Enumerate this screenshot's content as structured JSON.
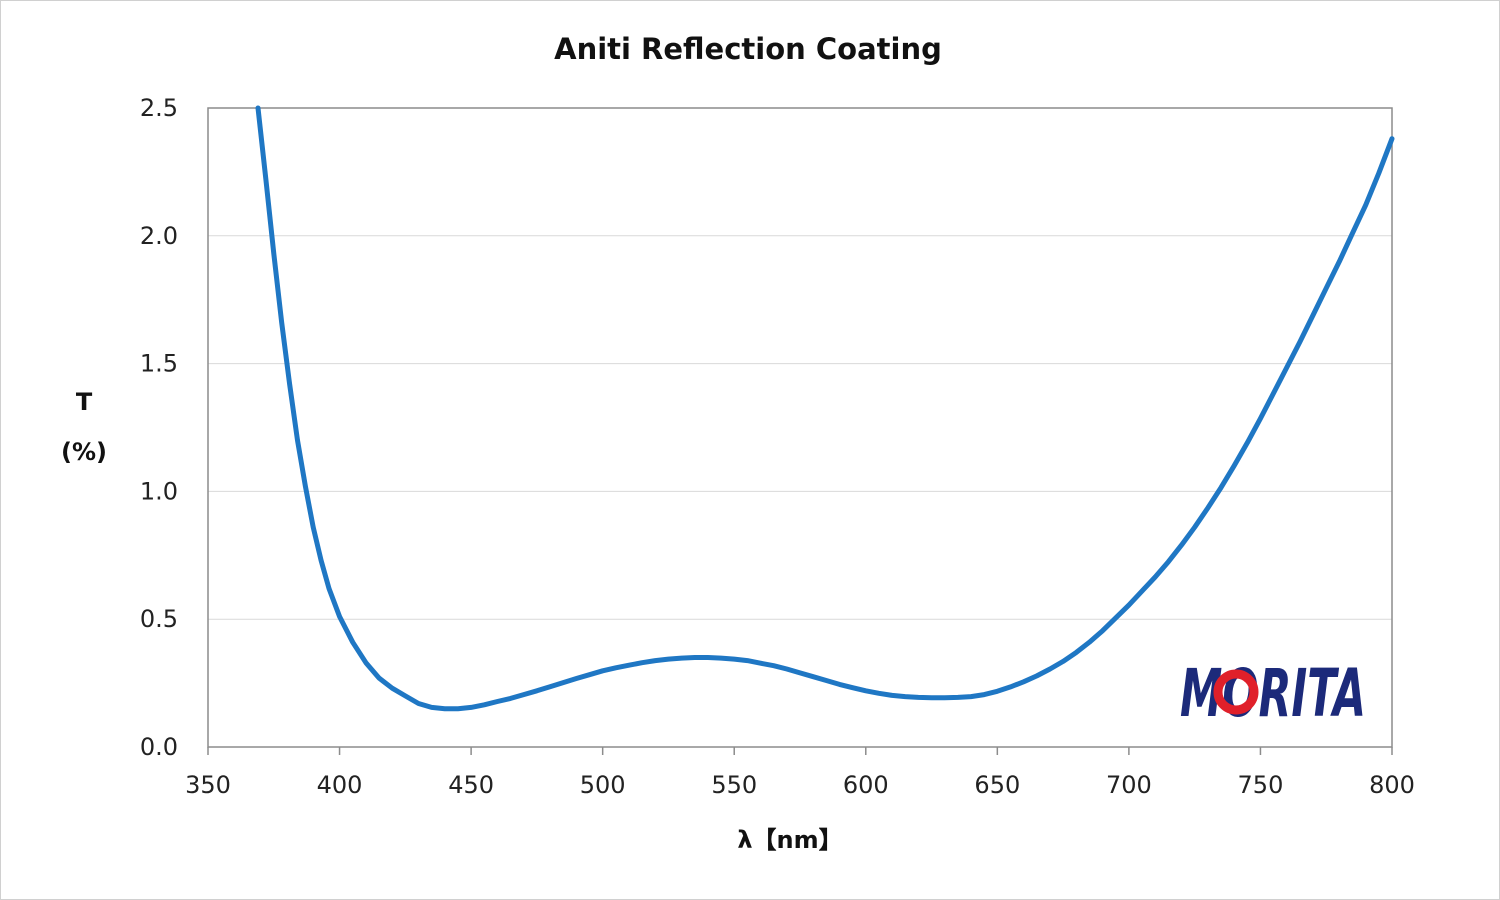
{
  "chart_data": {
    "type": "line",
    "title": "Aniti Reflection Coating",
    "xlabel": "λ【nm】",
    "ylabel_line1": "T",
    "ylabel_line2": "(%)",
    "xlim": [
      350,
      800
    ],
    "ylim": [
      0,
      2.5
    ],
    "xticks": [
      "350",
      "400",
      "450",
      "500",
      "550",
      "600",
      "650",
      "700",
      "750",
      "800"
    ],
    "yticks": [
      "0.0",
      "0.5",
      "1.0",
      "1.5",
      "2.0",
      "2.5"
    ],
    "grid": true,
    "series": [
      {
        "color": "#1f77c4",
        "x": [
          369,
          372,
          375,
          378,
          381,
          384,
          387,
          390,
          393,
          396,
          400,
          405,
          410,
          415,
          420,
          425,
          430,
          435,
          440,
          445,
          450,
          455,
          460,
          465,
          470,
          475,
          480,
          485,
          490,
          495,
          500,
          505,
          510,
          515,
          520,
          525,
          530,
          535,
          540,
          545,
          550,
          555,
          560,
          565,
          570,
          575,
          580,
          585,
          590,
          595,
          600,
          605,
          610,
          615,
          620,
          625,
          630,
          635,
          640,
          645,
          650,
          655,
          660,
          665,
          670,
          675,
          680,
          685,
          690,
          695,
          700,
          705,
          710,
          715,
          720,
          725,
          730,
          735,
          740,
          745,
          750,
          755,
          760,
          765,
          770,
          775,
          780,
          785,
          790,
          795,
          800
        ],
        "y": [
          2.5,
          2.22,
          1.93,
          1.66,
          1.42,
          1.2,
          1.02,
          0.86,
          0.73,
          0.62,
          0.51,
          0.41,
          0.33,
          0.27,
          0.23,
          0.2,
          0.17,
          0.155,
          0.15,
          0.15,
          0.155,
          0.165,
          0.178,
          0.19,
          0.205,
          0.22,
          0.236,
          0.252,
          0.268,
          0.283,
          0.298,
          0.31,
          0.32,
          0.33,
          0.338,
          0.344,
          0.348,
          0.35,
          0.35,
          0.348,
          0.344,
          0.338,
          0.328,
          0.318,
          0.305,
          0.29,
          0.275,
          0.26,
          0.245,
          0.232,
          0.22,
          0.21,
          0.202,
          0.197,
          0.194,
          0.193,
          0.193,
          0.194,
          0.197,
          0.205,
          0.218,
          0.235,
          0.255,
          0.278,
          0.305,
          0.335,
          0.37,
          0.41,
          0.455,
          0.505,
          0.555,
          0.61,
          0.665,
          0.725,
          0.79,
          0.86,
          0.935,
          1.015,
          1.1,
          1.19,
          1.285,
          1.385,
          1.485,
          1.585,
          1.69,
          1.795,
          1.9,
          2.01,
          2.12,
          2.245,
          2.38
        ]
      }
    ]
  },
  "logo": {
    "text": "MORITA",
    "colors": {
      "main": "#1c2a7a",
      "accent": "#e0202a"
    }
  }
}
